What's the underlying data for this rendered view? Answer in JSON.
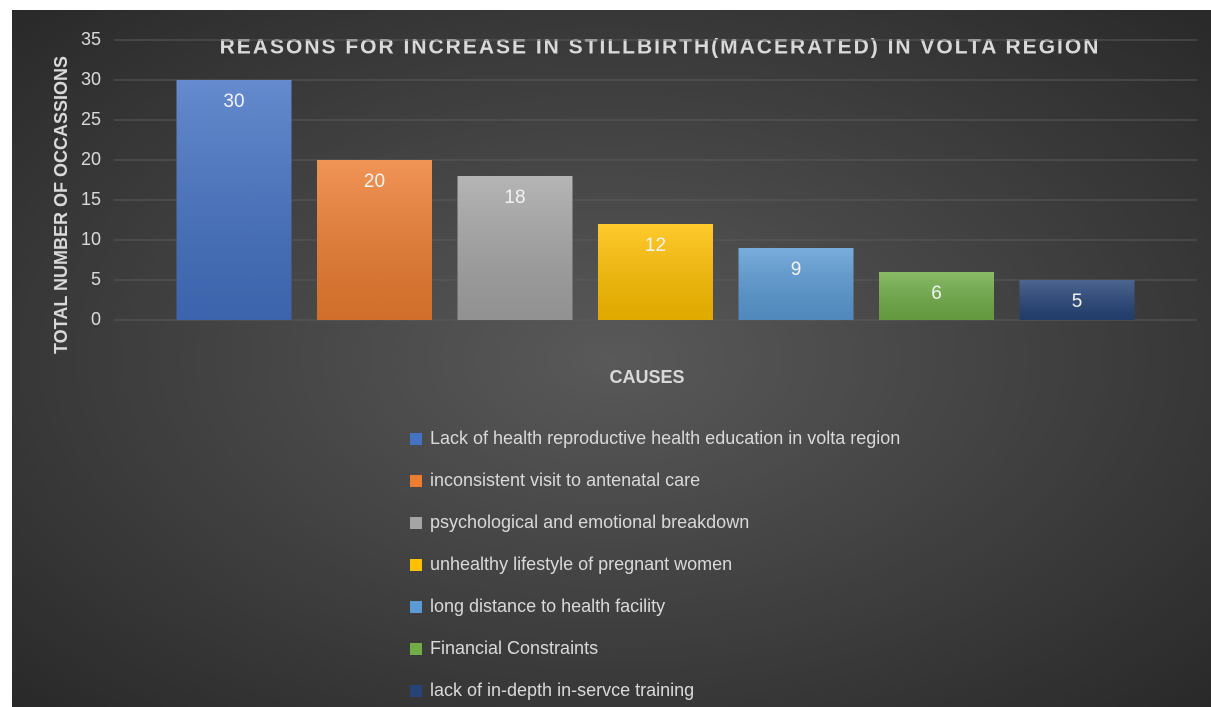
{
  "chart_data": {
    "type": "bar",
    "title": "REASONS FOR INCREASE IN STILLBIRTH(MACERATED) IN VOLTA REGION",
    "x_label": "CAUSES",
    "y_label": "TOTAL NUMBER OF OCCASSIONS",
    "categories": [
      null
    ],
    "series": [
      {
        "name": "Lack of health reproductive health education in volta region",
        "color": "#4472c4",
        "values": [
          30
        ]
      },
      {
        "name": "inconsistent visit to antenatal care",
        "color": "#ed7d31",
        "values": [
          20
        ]
      },
      {
        "name": "psychological and emotional breakdown",
        "color": "#a5a5a5",
        "values": [
          18
        ]
      },
      {
        "name": "unhealthy lifestyle of pregnant women",
        "color": "#ffc000",
        "values": [
          12
        ]
      },
      {
        "name": "long distance to health facility",
        "color": "#5b9bd5",
        "values": [
          9
        ]
      },
      {
        "name": "Financial Constraints",
        "color": "#70ad47",
        "values": [
          6
        ]
      },
      {
        "name": "lack of in-depth in-servce training",
        "color": "#264478",
        "values": [
          5
        ]
      }
    ],
    "ylim": [
      0,
      35
    ],
    "yticks": [
      0,
      5,
      10,
      15,
      20,
      25,
      30,
      35
    ],
    "grid": true,
    "legend": "bottom"
  }
}
